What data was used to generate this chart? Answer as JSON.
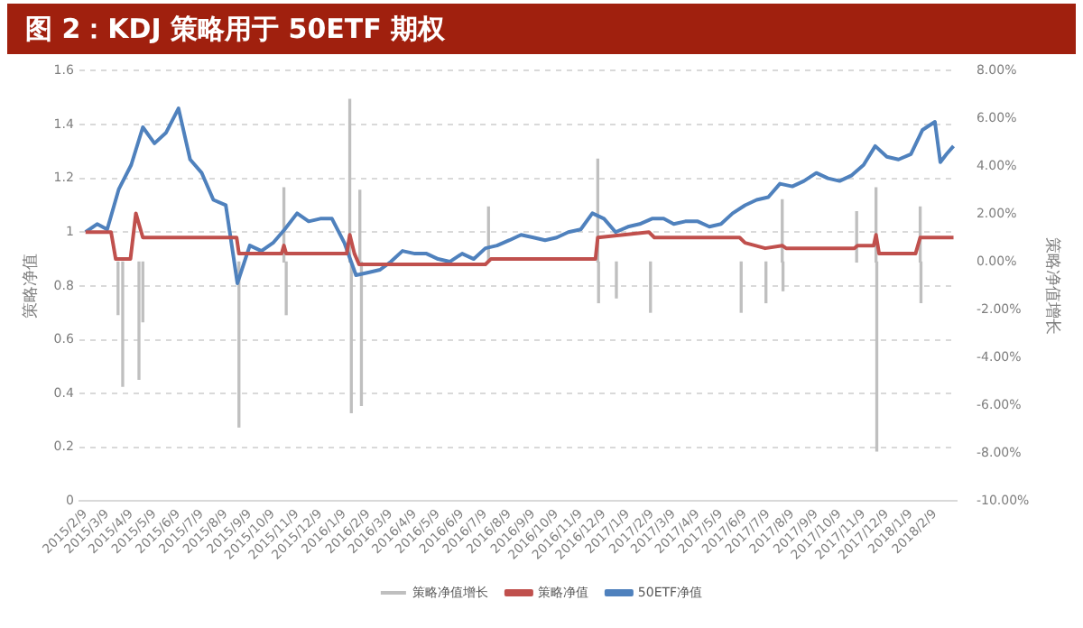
{
  "chart_data": {
    "type": "line",
    "title": "图 2：KDJ 策略用于 50ETF 期权",
    "ylabel": "策略净值",
    "y2label": "策略净值增长",
    "xlim": [
      "2015-02-01",
      "2018-03-09"
    ],
    "xticks": [
      {
        "value": "2015-02-09",
        "label": "2015/2/9"
      },
      {
        "value": "2015-03-09",
        "label": "2015/3/9"
      },
      {
        "value": "2015-04-09",
        "label": "2015/4/9"
      },
      {
        "value": "2015-05-09",
        "label": "2015/5/9"
      },
      {
        "value": "2015-06-09",
        "label": "2015/6/9"
      },
      {
        "value": "2015-07-09",
        "label": "2015/7/9"
      },
      {
        "value": "2015-08-09",
        "label": "2015/8/9"
      },
      {
        "value": "2015-09-09",
        "label": "2015/9/9"
      },
      {
        "value": "2015-10-09",
        "label": "2015/10/9"
      },
      {
        "value": "2015-11-09",
        "label": "2015/11/9"
      },
      {
        "value": "2015-12-09",
        "label": "2015/12/9"
      },
      {
        "value": "2016-01-09",
        "label": "2016/1/9"
      },
      {
        "value": "2016-02-09",
        "label": "2016/2/9"
      },
      {
        "value": "2016-03-09",
        "label": "2016/3/9"
      },
      {
        "value": "2016-04-09",
        "label": "2016/4/9"
      },
      {
        "value": "2016-05-09",
        "label": "2016/5/9"
      },
      {
        "value": "2016-06-09",
        "label": "2016/6/9"
      },
      {
        "value": "2016-07-09",
        "label": "2016/7/9"
      },
      {
        "value": "2016-08-09",
        "label": "2016/8/9"
      },
      {
        "value": "2016-09-09",
        "label": "2016/9/9"
      },
      {
        "value": "2016-10-09",
        "label": "2016/10/9"
      },
      {
        "value": "2016-11-09",
        "label": "2016/11/9"
      },
      {
        "value": "2016-12-09",
        "label": "2016/12/9"
      },
      {
        "value": "2017-01-09",
        "label": "2017/1/9"
      },
      {
        "value": "2017-02-09",
        "label": "2017/2/9"
      },
      {
        "value": "2017-03-09",
        "label": "2017/3/9"
      },
      {
        "value": "2017-04-09",
        "label": "2017/4/9"
      },
      {
        "value": "2017-05-09",
        "label": "2017/5/9"
      },
      {
        "value": "2017-06-09",
        "label": "2017/6/9"
      },
      {
        "value": "2017-07-09",
        "label": "2017/7/9"
      },
      {
        "value": "2017-08-09",
        "label": "2017/8/9"
      },
      {
        "value": "2017-09-09",
        "label": "2017/9/9"
      },
      {
        "value": "2017-10-09",
        "label": "2017/10/9"
      },
      {
        "value": "2017-11-09",
        "label": "2017/11/9"
      },
      {
        "value": "2017-12-09",
        "label": "2017/12/9"
      },
      {
        "value": "2018-01-09",
        "label": "2018/1/9"
      },
      {
        "value": "2018-02-09",
        "label": "2018/2/9"
      }
    ],
    "ylim": [
      0,
      1.6
    ],
    "yticks": [
      0,
      0.2,
      0.4,
      0.6,
      0.8,
      1,
      1.2,
      1.4,
      1.6
    ],
    "y2lim": [
      -10,
      8
    ],
    "y2ticks": [
      {
        "value": -10,
        "label": "-10.00%"
      },
      {
        "value": -8,
        "label": "-8.00%"
      },
      {
        "value": -6,
        "label": "-6.00%"
      },
      {
        "value": -4,
        "label": "-4.00%"
      },
      {
        "value": -2,
        "label": "-2.00%"
      },
      {
        "value": 0,
        "label": "0.00%"
      },
      {
        "value": 2,
        "label": "2.00%"
      },
      {
        "value": 4,
        "label": "4.00%"
      },
      {
        "value": 6,
        "label": "6.00%"
      },
      {
        "value": 8,
        "label": "8.00%"
      }
    ],
    "grid": "y",
    "legend": "bottom",
    "marker": "none",
    "series": [
      {
        "name": "策略净值增长",
        "type": "bar",
        "axis": "y2",
        "color": "#bfbfbf",
        "x": [
          "2015-03-23",
          "2015-03-29",
          "2015-04-19",
          "2015-04-24",
          "2015-08-26",
          "2015-10-23",
          "2015-10-26",
          "2016-01-16",
          "2016-01-18",
          "2016-01-29",
          "2016-01-31",
          "2016-07-13",
          "2016-12-01",
          "2016-12-02",
          "2016-12-25",
          "2017-02-07",
          "2017-06-04",
          "2017-07-06",
          "2017-07-27",
          "2017-07-28",
          "2017-10-31",
          "2017-11-25",
          "2017-11-26",
          "2018-01-21",
          "2018-01-22"
        ],
        "values": [
          -2.2,
          -5.2,
          -4.9,
          -2.5,
          -6.9,
          3.1,
          -2.2,
          6.8,
          -6.3,
          3.0,
          -6.0,
          2.3,
          4.3,
          -1.7,
          -1.5,
          -2.1,
          -2.1,
          -1.7,
          2.6,
          -1.2,
          2.1,
          3.1,
          -7.9,
          2.3,
          -1.7
        ]
      },
      {
        "name": "策略净值",
        "color": "#c0504d",
        "x": [
          "2015-02-09",
          "2015-03-14",
          "2015-03-20",
          "2015-04-08",
          "2015-04-15",
          "2015-04-24",
          "2015-08-23",
          "2015-08-26",
          "2015-10-20",
          "2015-10-23",
          "2015-10-26",
          "2016-01-12",
          "2016-01-16",
          "2016-01-22",
          "2016-01-28",
          "2016-07-09",
          "2016-07-16",
          "2016-11-28",
          "2016-12-01",
          "2017-02-05",
          "2017-02-12",
          "2017-06-02",
          "2017-06-09",
          "2017-07-05",
          "2017-07-27",
          "2017-08-01",
          "2017-10-28",
          "2017-11-01",
          "2017-11-22",
          "2017-11-25",
          "2017-11-29",
          "2018-01-15",
          "2018-01-21",
          "2018-03-05"
        ],
        "values": [
          1.0,
          1.0,
          0.9,
          0.9,
          1.07,
          0.98,
          0.98,
          0.92,
          0.92,
          0.95,
          0.92,
          0.92,
          0.99,
          0.92,
          0.88,
          0.88,
          0.9,
          0.9,
          0.98,
          1.0,
          0.98,
          0.98,
          0.96,
          0.94,
          0.95,
          0.94,
          0.94,
          0.95,
          0.95,
          0.99,
          0.92,
          0.92,
          0.98,
          0.98
        ]
      },
      {
        "name": "50ETF净值",
        "color": "#4f81bd",
        "x": [
          "2015-02-09",
          "2015-02-24",
          "2015-03-09",
          "2015-03-24",
          "2015-04-09",
          "2015-04-24",
          "2015-05-09",
          "2015-05-24",
          "2015-06-09",
          "2015-06-24",
          "2015-07-09",
          "2015-07-24",
          "2015-08-09",
          "2015-08-24",
          "2015-09-09",
          "2015-09-24",
          "2015-10-09",
          "2015-10-24",
          "2015-11-09",
          "2015-11-24",
          "2015-12-09",
          "2015-12-24",
          "2016-01-09",
          "2016-01-24",
          "2016-02-09",
          "2016-02-24",
          "2016-03-09",
          "2016-03-24",
          "2016-04-09",
          "2016-04-24",
          "2016-05-09",
          "2016-05-24",
          "2016-06-09",
          "2016-06-24",
          "2016-07-09",
          "2016-07-24",
          "2016-08-09",
          "2016-08-24",
          "2016-09-09",
          "2016-09-24",
          "2016-10-09",
          "2016-10-24",
          "2016-11-09",
          "2016-11-24",
          "2016-12-09",
          "2016-12-24",
          "2017-01-09",
          "2017-01-24",
          "2017-02-09",
          "2017-02-24",
          "2017-03-09",
          "2017-03-24",
          "2017-04-09",
          "2017-04-24",
          "2017-05-09",
          "2017-05-24",
          "2017-06-09",
          "2017-06-24",
          "2017-07-09",
          "2017-07-24",
          "2017-08-09",
          "2017-08-24",
          "2017-09-09",
          "2017-09-24",
          "2017-10-09",
          "2017-10-24",
          "2017-11-09",
          "2017-11-24",
          "2017-12-09",
          "2017-12-24",
          "2018-01-09",
          "2018-01-24",
          "2018-02-09",
          "2018-02-16",
          "2018-02-24",
          "2018-03-05"
        ],
        "values": [
          1.0,
          1.03,
          1.01,
          1.16,
          1.25,
          1.39,
          1.33,
          1.37,
          1.46,
          1.27,
          1.22,
          1.12,
          1.1,
          0.81,
          0.95,
          0.93,
          0.96,
          1.01,
          1.07,
          1.04,
          1.05,
          1.05,
          0.96,
          0.84,
          0.85,
          0.86,
          0.89,
          0.93,
          0.92,
          0.92,
          0.9,
          0.89,
          0.92,
          0.9,
          0.94,
          0.95,
          0.97,
          0.99,
          0.98,
          0.97,
          0.98,
          1.0,
          1.01,
          1.07,
          1.05,
          1.0,
          1.02,
          1.03,
          1.05,
          1.05,
          1.03,
          1.04,
          1.04,
          1.02,
          1.03,
          1.07,
          1.1,
          1.12,
          1.13,
          1.18,
          1.17,
          1.19,
          1.22,
          1.2,
          1.19,
          1.21,
          1.25,
          1.32,
          1.28,
          1.27,
          1.29,
          1.38,
          1.41,
          1.26,
          1.29,
          1.32
        ]
      }
    ]
  }
}
